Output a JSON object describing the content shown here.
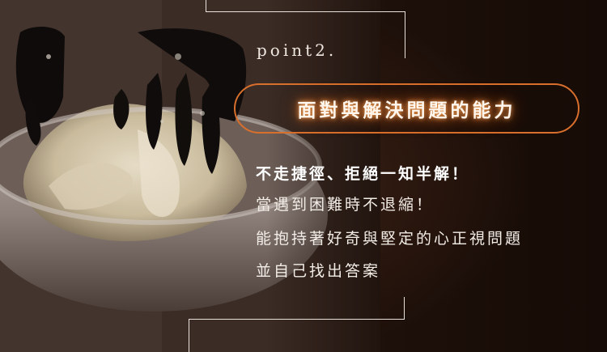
{
  "point_label": "point2.",
  "title": "面對與解決問題的能力",
  "subhead": "不走捷徑、拒絕一知半解！",
  "body_lines": [
    "當遇到困難時不退縮！",
    "能抱持著好奇與堅定的心正視問題",
    "並自己找出答案"
  ],
  "colors": {
    "accent": "#d96f2c",
    "frame_line": "#e9e2dc",
    "background": "#1c0f09"
  }
}
